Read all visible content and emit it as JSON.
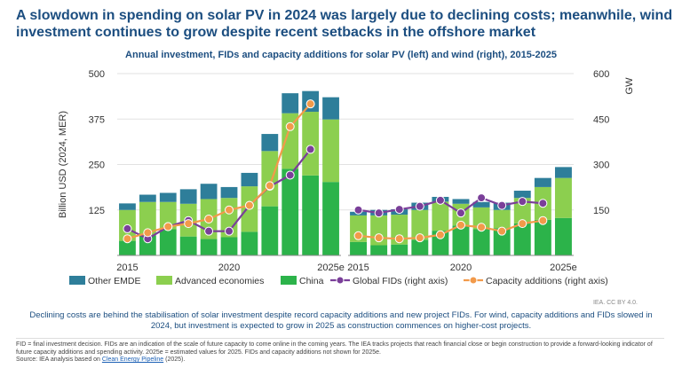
{
  "title": "A slowdown in spending on solar PV in 2024 was largely due to declining costs; meanwhile, wind investment continues to grow despite recent setbacks in the offshore market",
  "chart_data": {
    "type": "bar",
    "subtitle": "Annual investment, FIDs and capacity additions for solar PV (left) and wind (right), 2015-2025",
    "ylabel": "Billion USD (2024, MER)",
    "y2label": "GW",
    "ylim": [
      0,
      500
    ],
    "y2lim": [
      0,
      600
    ],
    "yticks": [
      "125",
      "250",
      "375",
      "500"
    ],
    "y2ticks": [
      "150",
      "300",
      "450",
      "600"
    ],
    "categories": [
      "2015",
      "2016",
      "2017",
      "2018",
      "2019",
      "2020",
      "2021",
      "2022",
      "2023",
      "2024",
      "2025e"
    ],
    "xtick_labels": [
      "2015",
      "2020",
      "2025e"
    ],
    "colors": {
      "other_emde": "#2e7e9a",
      "advanced": "#8ccf4f",
      "china": "#2cb34a",
      "global_fids": "#7a3f99",
      "capacity": "#f29a4a"
    },
    "panels": [
      {
        "name": "Solar PV",
        "stacked_series": [
          {
            "name": "China",
            "values": [
              40,
              55,
              72,
              52,
              45,
              50,
              65,
              135,
              238,
              220,
              202
            ]
          },
          {
            "name": "Advanced economies",
            "values": [
              85,
              92,
              75,
              90,
              110,
              108,
              125,
              152,
              153,
              175,
              172
            ]
          },
          {
            "name": "Other EMDE",
            "values": [
              18,
              20,
              25,
              40,
              42,
              30,
              37,
              47,
              55,
              57,
              61
            ]
          }
        ],
        "line_series": [
          {
            "name": "Global FIDs (right axis)",
            "values": [
              88,
              55,
              95,
              115,
              80,
              80,
              165,
              228,
              265,
              350,
              null
            ]
          },
          {
            "name": "Capacity additions (right axis)",
            "values": [
              55,
              75,
              95,
              105,
              120,
              150,
              165,
              230,
              425,
              500,
              null
            ]
          }
        ]
      },
      {
        "name": "Wind",
        "stacked_series": [
          {
            "name": "China",
            "values": [
              37,
              28,
              30,
              43,
              68,
              82,
              72,
              75,
              88,
              98,
              103
            ]
          },
          {
            "name": "Advanced economies",
            "values": [
              73,
              82,
              82,
              82,
              80,
              60,
              60,
              50,
              70,
              90,
              110
            ]
          },
          {
            "name": "Other EMDE",
            "values": [
              10,
              15,
              15,
              20,
              13,
              13,
              15,
              20,
              20,
              25,
              30
            ]
          }
        ],
        "line_series": [
          {
            "name": "Global FIDs (right axis)",
            "values": [
              150,
              140,
              152,
              162,
              182,
              140,
              190,
              165,
              178,
              172,
              null
            ]
          },
          {
            "name": "Capacity additions (right axis)",
            "values": [
              65,
              58,
              55,
              58,
              68,
              100,
              93,
              80,
              105,
              115,
              null
            ]
          }
        ]
      }
    ],
    "legend": [
      {
        "label": "Other EMDE",
        "kind": "box",
        "color_key": "other_emde"
      },
      {
        "label": "Advanced economies",
        "kind": "box",
        "color_key": "advanced"
      },
      {
        "label": "China",
        "kind": "box",
        "color_key": "china"
      },
      {
        "label": "Global FIDs (right axis)",
        "kind": "line",
        "color_key": "global_fids"
      },
      {
        "label": "Capacity additions (right axis)",
        "kind": "line",
        "color_key": "capacity"
      }
    ]
  },
  "credit": "IEA. CC BY 4.0.",
  "caption": "Declining costs are behind the stabilisation of solar investment despite record capacity additions and new project FIDs. For wind, capacity additions and FIDs slowed in 2024, but investment is expected to grow in 2025 as construction commences on higher-cost projects.",
  "notes": {
    "fid": "FID = final investment decision. FIDs are an indication of the scale of future capacity to come online in the coming years. The IEA tracks projects that reach financial close or begin construction to provide a forward-looking indicator of future capacity additions and spending activity. 2025e = estimated values for 2025. FIDs and capacity additions not shown for 2025e.",
    "source_prefix": "Source: IEA analysis based on ",
    "source_link": "Clean Energy Pipeline",
    "source_suffix": " (2025)."
  }
}
